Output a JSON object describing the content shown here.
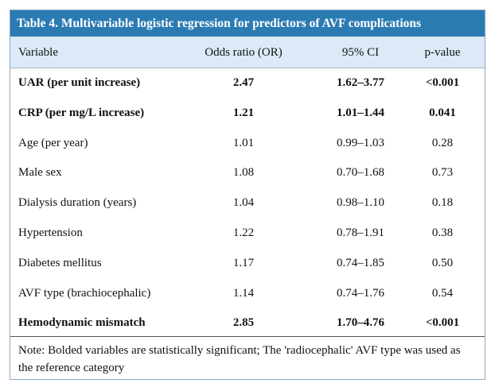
{
  "table": {
    "title": "Table 4. Multivariable logistic regression for predictors of AVF complications",
    "header": [
      "Variable",
      "Odds ratio (OR)",
      "95% CI",
      "p-value"
    ],
    "rows": [
      {
        "cells": [
          "UAR (per unit increase)",
          "2.47",
          "1.62–3.77",
          "<0.001"
        ],
        "bold": true
      },
      {
        "cells": [
          "CRP (per mg/L increase)",
          "1.21",
          "1.01–1.44",
          "0.041"
        ],
        "bold": true
      },
      {
        "cells": [
          "Age (per year)",
          "1.01",
          "0.99–1.03",
          "0.28"
        ],
        "bold": false
      },
      {
        "cells": [
          "Male sex",
          "1.08",
          "0.70–1.68",
          "0.73"
        ],
        "bold": false
      },
      {
        "cells": [
          "Dialysis duration (years)",
          "1.04",
          "0.98–1.10",
          "0.18"
        ],
        "bold": false
      },
      {
        "cells": [
          "Hypertension",
          "1.22",
          "0.78–1.91",
          "0.38"
        ],
        "bold": false
      },
      {
        "cells": [
          "Diabetes mellitus",
          "1.17",
          "0.74–1.85",
          "0.50"
        ],
        "bold": false
      },
      {
        "cells": [
          "AVF type (brachiocephalic)",
          "1.14",
          "0.74–1.76",
          "0.54"
        ],
        "bold": false
      },
      {
        "cells": [
          "Hemodynamic mismatch",
          "2.85",
          "1.70–4.76",
          "<0.001"
        ],
        "bold": true
      }
    ],
    "note": "Note: Bolded variables are statistically significant; The 'radiocephalic' AVF type was used as the reference category"
  }
}
